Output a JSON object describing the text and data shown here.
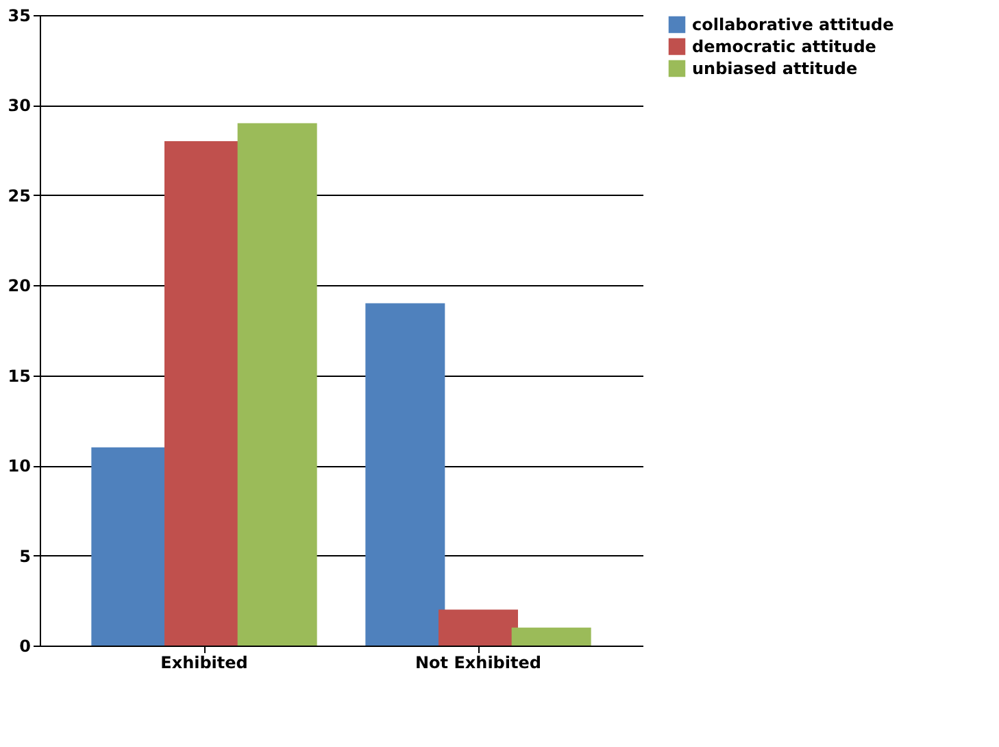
{
  "chart_data": {
    "type": "bar",
    "categories": [
      "Exhibited",
      "Not Exhibited"
    ],
    "series": [
      {
        "name": "collaborative attitude",
        "color": "#4f81bd",
        "values": [
          11,
          19
        ]
      },
      {
        "name": "democratic attitude",
        "color": "#c0504d",
        "values": [
          28,
          2
        ]
      },
      {
        "name": "unbiased attitude",
        "color": "#9bbb59",
        "values": [
          29,
          1
        ]
      }
    ],
    "ylim": [
      0,
      35
    ],
    "yticks": [
      0,
      5,
      10,
      15,
      20,
      25,
      30,
      35
    ],
    "grid": "y",
    "legend": "right"
  }
}
